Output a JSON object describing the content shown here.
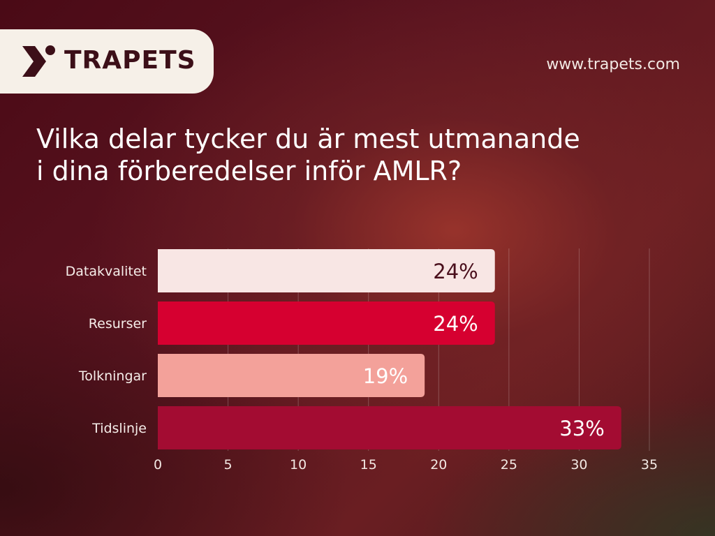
{
  "brand": {
    "name": "TRAPETS",
    "url": "www.trapets.com"
  },
  "title_line1": "Vilka delar tycker du är mest utmanande",
  "title_line2": "i dina förberedelser inför AMLR?",
  "colors": {
    "bar_1": "#f8e6e4",
    "bar_2": "#d60030",
    "bar_3": "#f3a19a",
    "bar_4": "#a30c32",
    "label_dark": "#4a0f1c",
    "label_light": "#ffffff"
  },
  "chart_data": {
    "type": "bar",
    "orientation": "horizontal",
    "categories": [
      "Datakvalitet",
      "Resurser",
      "Tolkningar",
      "Tidslinje"
    ],
    "values": [
      24,
      24,
      19,
      33
    ],
    "data_labels": [
      "24%",
      "24%",
      "19%",
      "33%"
    ],
    "xlim": [
      0,
      35
    ],
    "xticks": [
      "0",
      "5",
      "10",
      "15",
      "20",
      "25",
      "30",
      "35"
    ],
    "grid": "vertical",
    "title": "Vilka delar tycker du är mest utmanande i dina förberedelser inför AMLR?"
  }
}
